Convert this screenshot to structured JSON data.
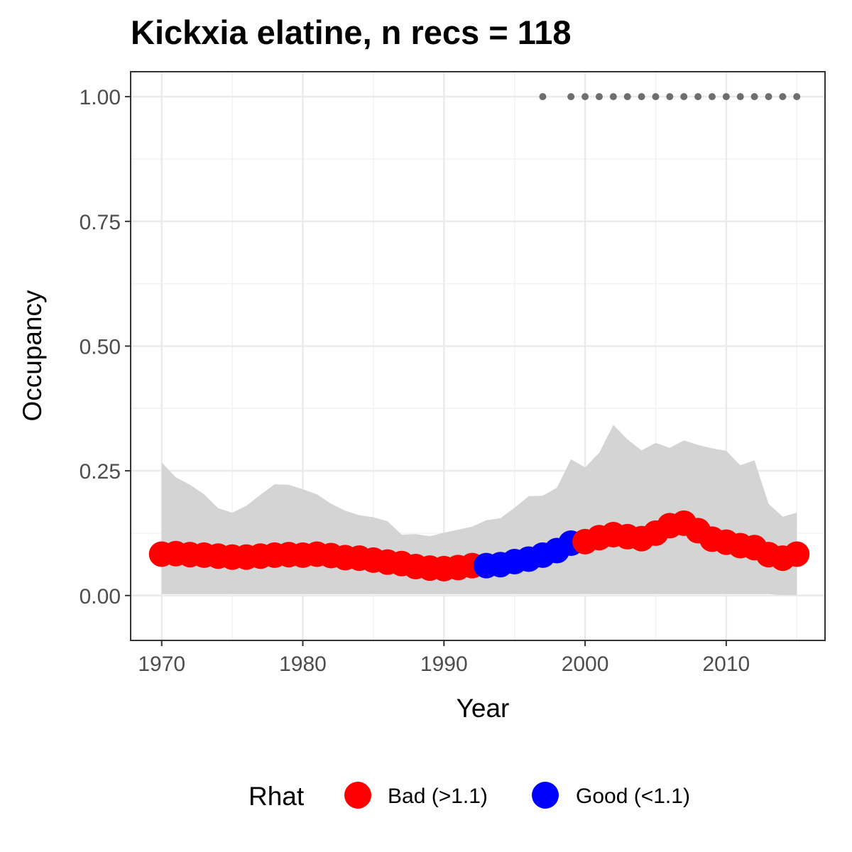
{
  "chart_data": {
    "type": "line",
    "title": "Kickxia elatine, n recs = 118",
    "xlabel": "Year",
    "ylabel": "Occupancy",
    "xlim": [
      1967.8,
      1971.0
    ],
    "ylim": [
      -0.09,
      1.05
    ],
    "x_ticks": [
      1970,
      1980,
      1990,
      2000,
      2010
    ],
    "y_ticks": [
      0.0,
      0.25,
      0.5,
      0.75,
      1.0
    ],
    "x_tick_labels": [
      "1970",
      "1980",
      "1990",
      "2000",
      "2010"
    ],
    "y_tick_labels": [
      "0.00",
      "0.25",
      "0.50",
      "0.75",
      "1.00"
    ],
    "grid": true,
    "legend_position": "bottom",
    "legend": {
      "title": "Rhat",
      "items": [
        {
          "label": "Bad (>1.1)",
          "color": "#ff0000"
        },
        {
          "label": "Good (<1.1)",
          "color": "#0000ff"
        }
      ]
    },
    "colors": {
      "bad": "#ff0000",
      "good": "#0000ff",
      "ribbon": "#d4d4d4",
      "record_dots": "#6e6e6e"
    },
    "years": [
      1970,
      1971,
      1972,
      1973,
      1974,
      1975,
      1976,
      1977,
      1978,
      1979,
      1980,
      1981,
      1982,
      1983,
      1984,
      1985,
      1986,
      1987,
      1988,
      1989,
      1990,
      1991,
      1992,
      1993,
      1994,
      1995,
      1996,
      1997,
      1998,
      1999,
      2000,
      2001,
      2002,
      2003,
      2004,
      2005,
      2006,
      2007,
      2008,
      2009,
      2010,
      2011,
      2012,
      2013,
      2014,
      2015
    ],
    "occupancy": [
      0.083,
      0.084,
      0.082,
      0.081,
      0.079,
      0.077,
      0.077,
      0.079,
      0.081,
      0.082,
      0.081,
      0.083,
      0.08,
      0.076,
      0.075,
      0.071,
      0.067,
      0.064,
      0.058,
      0.055,
      0.054,
      0.056,
      0.06,
      0.06,
      0.062,
      0.068,
      0.073,
      0.081,
      0.09,
      0.105,
      0.108,
      0.116,
      0.122,
      0.118,
      0.114,
      0.125,
      0.14,
      0.145,
      0.13,
      0.113,
      0.107,
      0.1,
      0.096,
      0.082,
      0.075,
      0.083
    ],
    "rhat": [
      "bad",
      "bad",
      "bad",
      "bad",
      "bad",
      "bad",
      "bad",
      "bad",
      "bad",
      "bad",
      "bad",
      "bad",
      "bad",
      "bad",
      "bad",
      "bad",
      "bad",
      "bad",
      "bad",
      "bad",
      "bad",
      "bad",
      "bad",
      "good",
      "good",
      "good",
      "good",
      "good",
      "good",
      "good",
      "bad",
      "bad",
      "bad",
      "bad",
      "bad",
      "bad",
      "bad",
      "bad",
      "bad",
      "bad",
      "bad",
      "bad",
      "bad",
      "bad",
      "bad",
      "bad"
    ],
    "ci_lower": [
      0.003,
      0.003,
      0.003,
      0.003,
      0.003,
      0.003,
      0.003,
      0.003,
      0.003,
      0.003,
      0.003,
      0.003,
      0.003,
      0.003,
      0.003,
      0.003,
      0.003,
      0.003,
      0.003,
      0.003,
      0.003,
      0.003,
      0.003,
      0.003,
      0.003,
      0.003,
      0.003,
      0.003,
      0.003,
      0.003,
      0.003,
      0.003,
      0.003,
      0.003,
      0.003,
      0.003,
      0.003,
      0.003,
      0.003,
      0.003,
      0.003,
      0.003,
      0.003,
      0.003,
      0.001,
      0.001
    ],
    "ci_upper": [
      0.267,
      0.237,
      0.222,
      0.203,
      0.175,
      0.166,
      0.18,
      0.202,
      0.223,
      0.222,
      0.213,
      0.203,
      0.184,
      0.17,
      0.161,
      0.157,
      0.149,
      0.122,
      0.123,
      0.119,
      0.126,
      0.132,
      0.138,
      0.151,
      0.155,
      0.176,
      0.199,
      0.2,
      0.216,
      0.273,
      0.257,
      0.286,
      0.342,
      0.313,
      0.291,
      0.306,
      0.296,
      0.311,
      0.302,
      0.295,
      0.29,
      0.261,
      0.271,
      0.184,
      0.158,
      0.166
    ],
    "record_years": [
      1997,
      1999,
      2000,
      2001,
      2002,
      2003,
      2004,
      2005,
      2006,
      2007,
      2008,
      2009,
      2010,
      2011,
      2012,
      2013,
      2014,
      2015
    ],
    "record_value": 1.0
  }
}
